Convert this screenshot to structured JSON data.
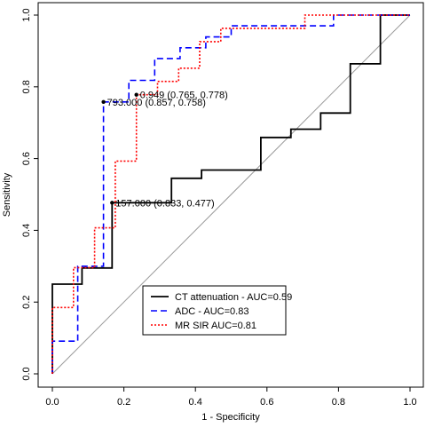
{
  "chart_data": {
    "type": "line",
    "xlabel": "1 - Specificity",
    "ylabel": "Sensitivity",
    "xlim": [
      0,
      1
    ],
    "ylim": [
      0,
      1
    ],
    "xticks": [
      "0.0",
      "0.2",
      "0.4",
      "0.6",
      "0.8",
      "1.0"
    ],
    "yticks": [
      "0.0",
      "0.2",
      "0.4",
      "0.6",
      "0.8",
      "1.0"
    ],
    "grid": false,
    "legend_position": "bottom-right",
    "reference_line": {
      "x": [
        0,
        1
      ],
      "y": [
        0,
        1
      ],
      "color": "#999999"
    },
    "series": [
      {
        "name": "CT attenuation - AUC=0.59",
        "color": "#000000",
        "dash": "solid",
        "x": [
          0,
          0,
          0.083,
          0.083,
          0.167,
          0.167,
          0.333,
          0.333,
          0.417,
          0.417,
          0.583,
          0.583,
          0.667,
          0.667,
          0.75,
          0.75,
          0.833,
          0.833,
          0.917,
          0.917,
          1.0
        ],
        "y": [
          0,
          0.25,
          0.25,
          0.295,
          0.295,
          0.477,
          0.477,
          0.545,
          0.545,
          0.568,
          0.568,
          0.659,
          0.659,
          0.682,
          0.682,
          0.727,
          0.727,
          0.864,
          0.864,
          1.0,
          1.0
        ]
      },
      {
        "name": "ADC - AUC=0.83",
        "color": "#0000ff",
        "dash": "dashed",
        "x": [
          0,
          0,
          0.071,
          0.071,
          0.143,
          0.143,
          0.214,
          0.214,
          0.286,
          0.286,
          0.357,
          0.357,
          0.429,
          0.429,
          0.5,
          0.5,
          0.786,
          0.786,
          1.0
        ],
        "y": [
          0,
          0.091,
          0.091,
          0.3,
          0.3,
          0.758,
          0.758,
          0.818,
          0.818,
          0.879,
          0.879,
          0.909,
          0.909,
          0.939,
          0.939,
          0.97,
          0.97,
          1.0,
          1.0
        ]
      },
      {
        "name": "MR SIR AUC=0.81",
        "color": "#ff0000",
        "dash": "dotted",
        "x": [
          0,
          0,
          0.059,
          0.059,
          0.118,
          0.118,
          0.176,
          0.176,
          0.235,
          0.235,
          0.294,
          0.294,
          0.353,
          0.353,
          0.412,
          0.412,
          0.471,
          0.471,
          0.706,
          0.706,
          1.0
        ],
        "y": [
          0,
          0.185,
          0.185,
          0.296,
          0.296,
          0.407,
          0.407,
          0.593,
          0.593,
          0.778,
          0.778,
          0.815,
          0.815,
          0.852,
          0.852,
          0.926,
          0.926,
          0.963,
          0.963,
          1.0,
          1.0
        ]
      }
    ],
    "annotations": [
      {
        "text": "0.949 (0.765, 0.778)",
        "x": 0.235,
        "y": 0.778,
        "point": true
      },
      {
        "text": "793.000 (0.857, 0.758)",
        "x": 0.143,
        "y": 0.758,
        "point": true
      },
      {
        "text": "157.000 (0.833, 0.477)",
        "x": 0.167,
        "y": 0.477,
        "point": true
      }
    ]
  }
}
